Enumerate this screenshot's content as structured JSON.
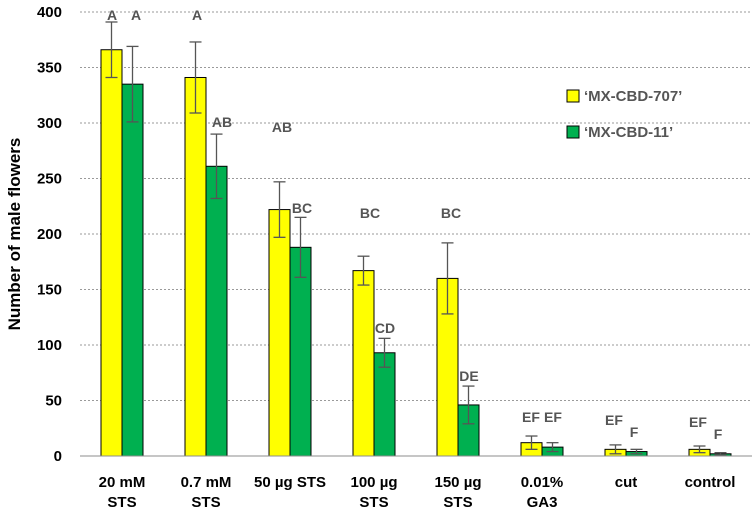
{
  "chart_data": {
    "type": "bar",
    "ylabel": "Number of male flowers",
    "ylim": [
      0,
      400
    ],
    "yticks": [
      "0",
      "50",
      "100",
      "150",
      "200",
      "250",
      "300",
      "350",
      "400"
    ],
    "grid": true,
    "legend_position": "right",
    "categories": [
      [
        "20 mM",
        "STS"
      ],
      [
        "0.7 mM",
        "STS"
      ],
      [
        "50 µg STS"
      ],
      [
        "100 µg",
        "STS"
      ],
      [
        "150 µg",
        "STS"
      ],
      [
        "0.01%",
        "GA3"
      ],
      [
        "cut"
      ],
      [
        "control"
      ]
    ],
    "series": [
      {
        "name": "‘MX-CBD-707’",
        "color": "#ffff00",
        "values": [
          366,
          341,
          222,
          167,
          160,
          12,
          6,
          6
        ],
        "errors": [
          25,
          32,
          25,
          13,
          32,
          6,
          4,
          3
        ],
        "letters": [
          "A",
          "A",
          "AB",
          "BC",
          "BC",
          "EF",
          "EF",
          "EF"
        ]
      },
      {
        "name": "‘MX-CBD-11’",
        "color": "#00b050",
        "values": [
          335,
          261,
          188,
          93,
          46,
          8,
          4,
          2
        ],
        "errors": [
          34,
          29,
          27,
          13,
          17,
          4,
          2,
          1
        ],
        "letters": [
          "A",
          "AB",
          "BC",
          "CD",
          "DE",
          "EF",
          "F",
          "F"
        ]
      }
    ]
  }
}
